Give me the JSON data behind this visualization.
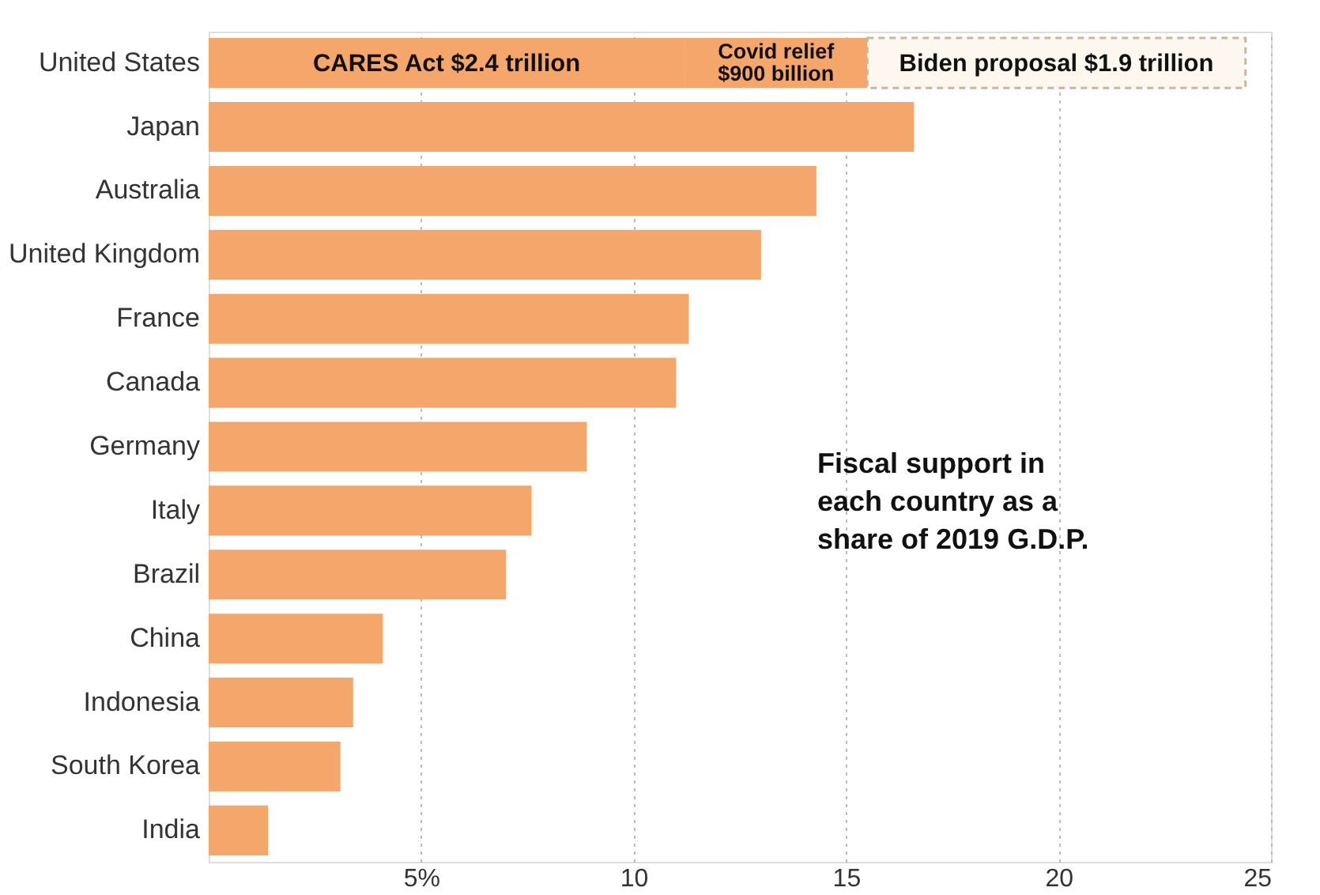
{
  "chart_data": {
    "type": "bar",
    "orientation": "horizontal",
    "stacked": true,
    "categories": [
      "United States",
      "Japan",
      "Australia",
      "United Kingdom",
      "France",
      "Canada",
      "Germany",
      "Italy",
      "Brazil",
      "China",
      "Indonesia",
      "South Korea",
      "India"
    ],
    "series": [
      {
        "name": "CARES Act $2.4 trillion",
        "color": "#f5a66b",
        "values": [
          11.2,
          16.6,
          14.3,
          13.0,
          11.3,
          11.0,
          8.9,
          7.6,
          7.0,
          4.1,
          3.4,
          3.1,
          1.4
        ]
      },
      {
        "name": "Covid relief $900 billion",
        "color": "#f5a66b",
        "values": [
          4.3,
          null,
          null,
          null,
          null,
          null,
          null,
          null,
          null,
          null,
          null,
          null,
          null
        ]
      },
      {
        "name": "Biden proposal $1.9 trillion",
        "color": "#fdf7f0",
        "line_style": "dashed",
        "values": [
          8.9,
          null,
          null,
          null,
          null,
          null,
          null,
          null,
          null,
          null,
          null,
          null,
          null
        ]
      }
    ],
    "xlim": [
      0,
      25
    ],
    "xticks": [
      {
        "value": 5,
        "label": "5%"
      },
      10,
      15,
      20,
      25
    ],
    "grid": "x",
    "annotations": [
      "Fiscal support in each country as a share of 2019 G.D.P."
    ]
  }
}
